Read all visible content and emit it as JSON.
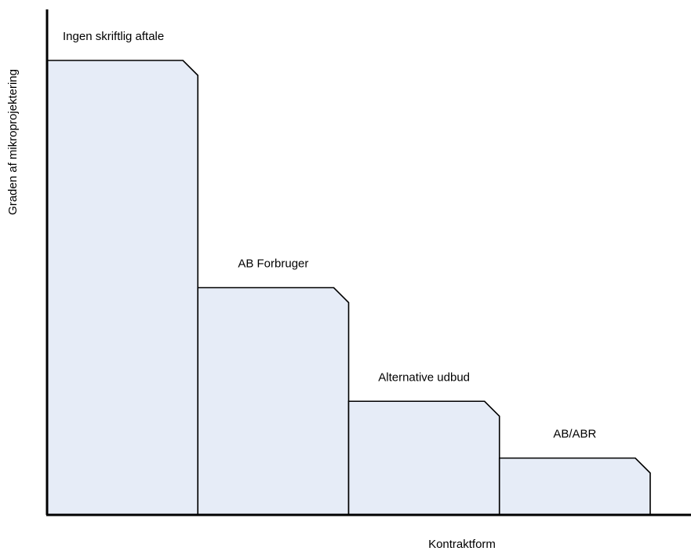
{
  "chart_data": {
    "type": "bar",
    "title": "",
    "xlabel": "Kontraktform",
    "ylabel": "Graden af mikroprojektering",
    "categories": [
      "Ingen skriftlig aftale",
      "AB Forbruger",
      "Alternative udbud",
      "AB/ABR"
    ],
    "values": [
      4,
      2,
      1,
      0.5
    ],
    "ylim": [
      0,
      4.4
    ],
    "grid": false,
    "legend": "none",
    "bar_labels_above": true
  },
  "colors": {
    "bar_fill": "#e6ecf7",
    "bar_stroke": "#000000",
    "axis": "#000000"
  }
}
